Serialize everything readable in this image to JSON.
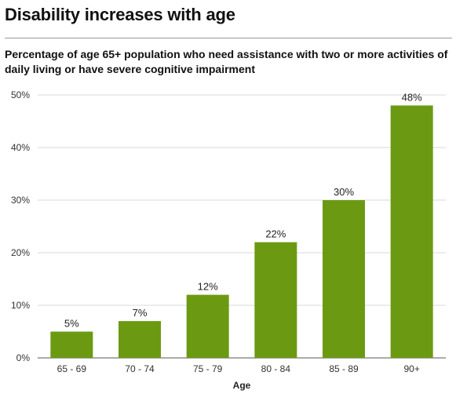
{
  "title": "Disability increases with age",
  "subtitle": "Percentage of age 65+ population who need assistance with two or more activities of daily living or have severe cognitive impairment",
  "colors": {
    "bar": "#6b9a12",
    "axis": "#555555",
    "grid": "#d9d9d9"
  },
  "chart_data": {
    "type": "bar",
    "categories": [
      "65 - 69",
      "70 - 74",
      "75 - 79",
      "80 - 84",
      "85 - 89",
      "90+"
    ],
    "values": [
      5,
      7,
      12,
      22,
      30,
      48
    ],
    "data_labels": [
      "5%",
      "7%",
      "12%",
      "22%",
      "30%",
      "48%"
    ],
    "y_ticks": [
      0,
      10,
      20,
      30,
      40,
      50
    ],
    "y_tick_labels": [
      "0%",
      "10%",
      "20%",
      "30%",
      "40%",
      "50%"
    ],
    "ylim": [
      0,
      50
    ],
    "xlabel": "Age",
    "ylabel": "",
    "grid": true
  }
}
